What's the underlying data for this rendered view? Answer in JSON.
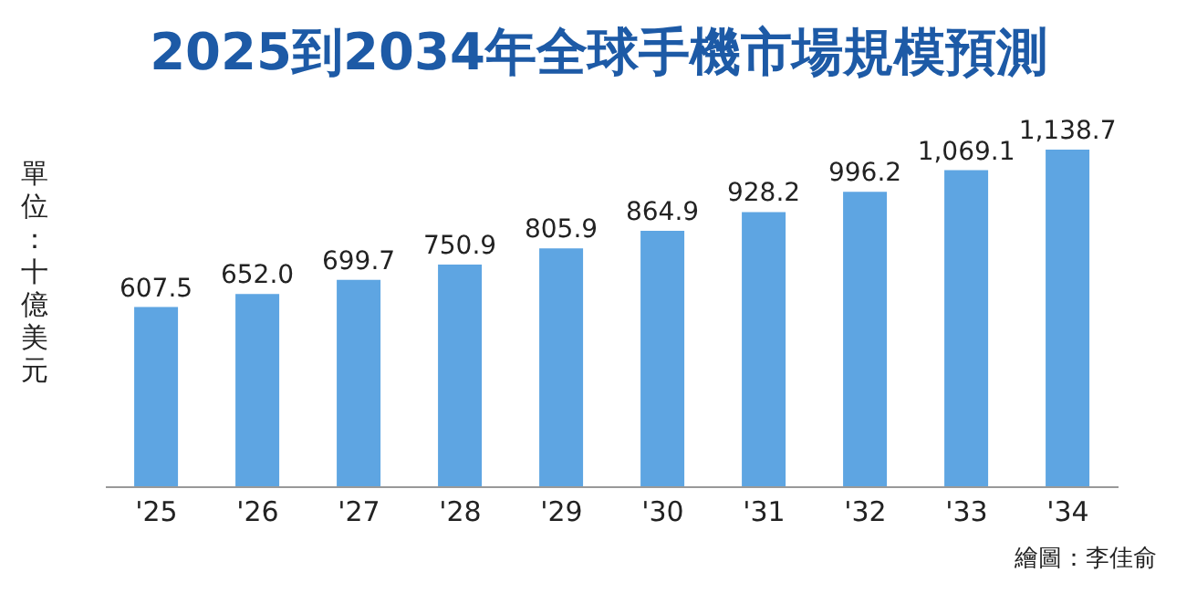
{
  "chart_data": {
    "type": "bar",
    "title": "2025到2034年全球手機市場規模預測",
    "ylabel": "單位：十億美元",
    "categories": [
      "'25",
      "'26",
      "'27",
      "'28",
      "'29",
      "'30",
      "'31",
      "'32",
      "'33",
      "'34"
    ],
    "values": [
      607.5,
      652.0,
      699.7,
      750.9,
      805.9,
      864.9,
      928.2,
      996.2,
      1069.1,
      1138.7
    ],
    "value_labels": [
      "607.5",
      "652.0",
      "699.7",
      "750.9",
      "805.9",
      "864.9",
      "928.2",
      "996.2",
      "1,069.1",
      "1,138.7"
    ],
    "color": "#5ea5e2",
    "annotations": [
      "繪圖：李佳俞"
    ]
  }
}
